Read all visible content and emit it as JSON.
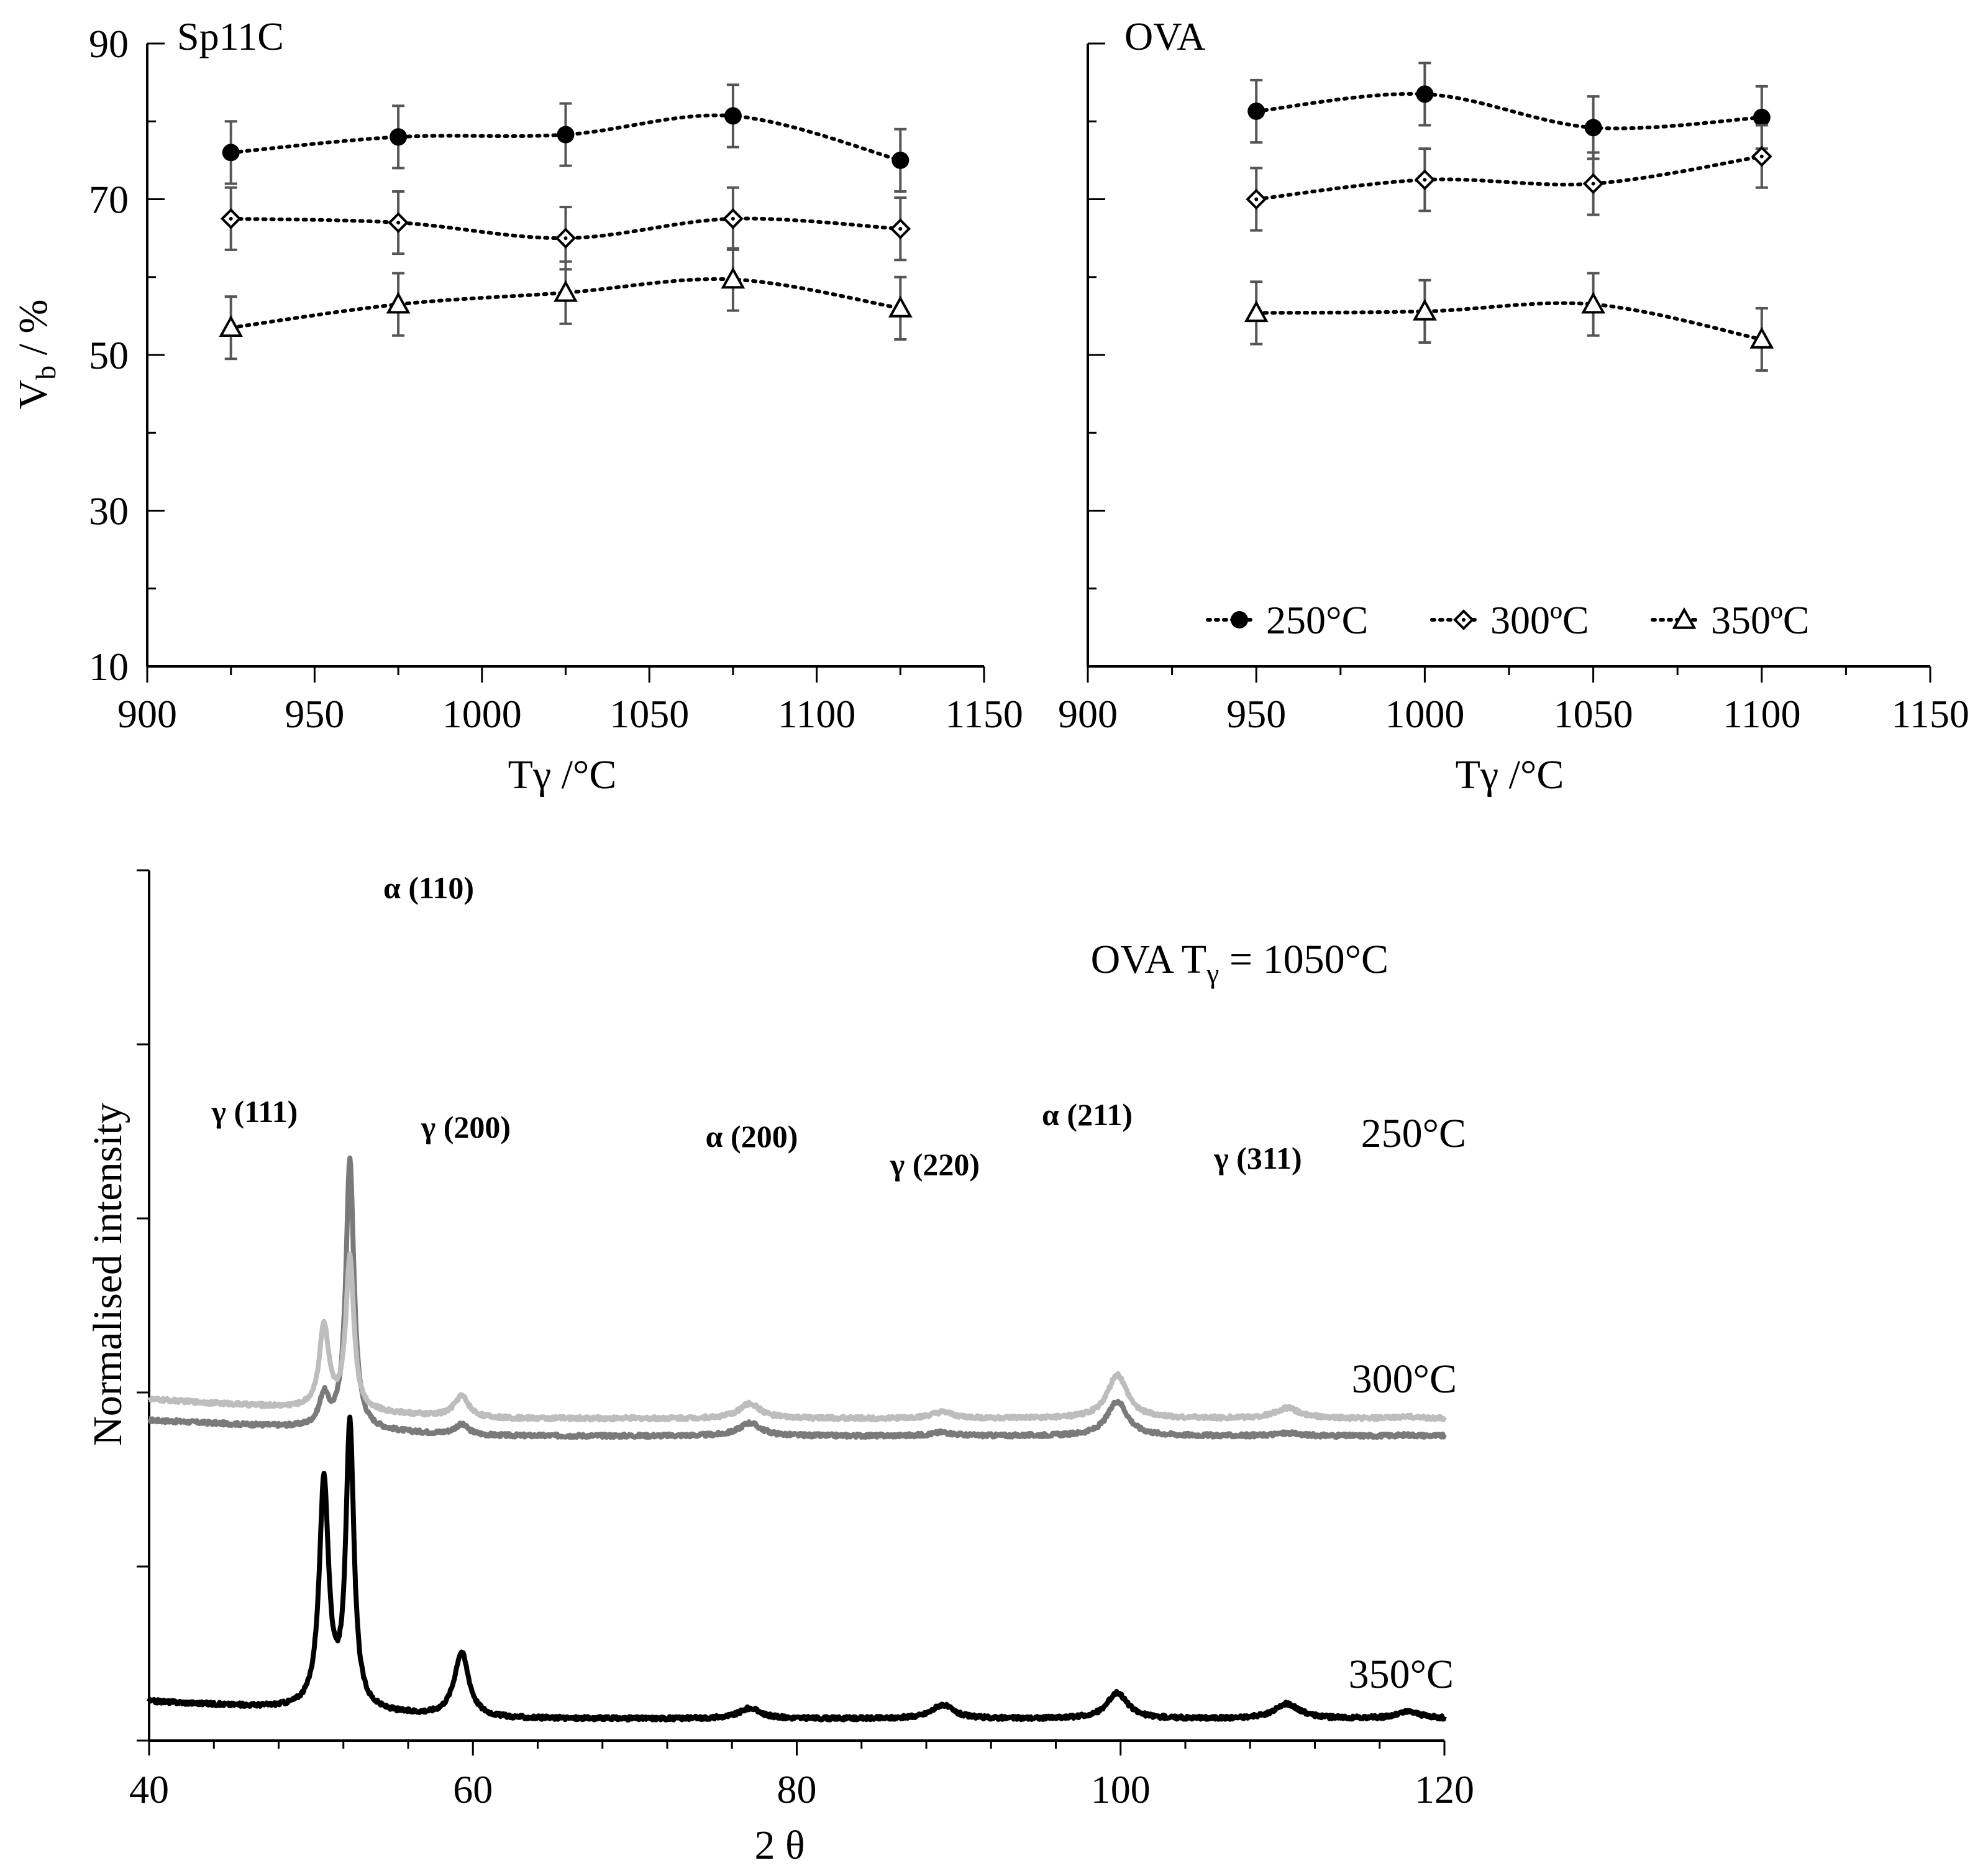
{
  "chart_data": [
    {
      "type": "line",
      "title": "Sp11C",
      "xlabel": "Tγ /°C",
      "ylabel": "V",
      "ylabel_sub": "b",
      "ylabel_unit": " / %",
      "xlim": [
        900,
        1150
      ],
      "ylim": [
        10,
        90
      ],
      "xticks": [
        "900",
        "950",
        "1000",
        "1050",
        "1100",
        "1150"
      ],
      "yticks": [
        "10",
        "30",
        "50",
        "70",
        "90"
      ],
      "x": [
        925,
        975,
        1025,
        1075,
        1125
      ],
      "series": [
        {
          "name": "250°C",
          "marker": "circle",
          "values": [
            76,
            78,
            78.3,
            80.7,
            75
          ],
          "errors": [
            4,
            4,
            4,
            4,
            4
          ]
        },
        {
          "name": "300ºC",
          "marker": "diamond",
          "values": [
            67.5,
            67,
            65,
            67.5,
            66.2
          ],
          "errors": [
            4,
            4,
            4,
            4,
            4
          ]
        },
        {
          "name": "350ºC",
          "marker": "triangle",
          "values": [
            53.5,
            56.5,
            58,
            59.7,
            56
          ],
          "errors": [
            4,
            4,
            4,
            4,
            4
          ]
        }
      ]
    },
    {
      "type": "line",
      "title": "OVA",
      "xlabel": "Tγ /°C",
      "xlim": [
        900,
        1150
      ],
      "ylim": [
        10,
        90
      ],
      "xticks": [
        "900",
        "950",
        "1000",
        "1050",
        "1100",
        "1150"
      ],
      "x": [
        950,
        1000,
        1050,
        1100
      ],
      "legend": [
        "250°C",
        "300ºC",
        "350ºC"
      ],
      "series": [
        {
          "name": "250°C",
          "marker": "circle",
          "values": [
            81.3,
            83.5,
            79.2,
            80.5
          ],
          "errors": [
            4,
            4,
            4,
            4
          ]
        },
        {
          "name": "300ºC",
          "marker": "diamond",
          "values": [
            70,
            72.5,
            72,
            75.5
          ],
          "errors": [
            4,
            4,
            4,
            4
          ]
        },
        {
          "name": "350ºC",
          "marker": "triangle",
          "values": [
            55.4,
            55.6,
            56.5,
            52
          ],
          "errors": [
            4,
            4,
            4,
            4
          ]
        }
      ]
    },
    {
      "type": "line",
      "title": "OVA T",
      "title_sub": "γ",
      "title_suffix": " = 1050°C",
      "xlabel": "2 θ",
      "ylabel": "Normalised intensity",
      "xlim": [
        40,
        120
      ],
      "xticks": [
        "40",
        "60",
        "80",
        "100",
        "120"
      ],
      "series": [
        {
          "name": "250°C",
          "color": "#7a7a7a",
          "baseline": 0.35,
          "slope": 0.018
        },
        {
          "name": "300°C",
          "color": "#bdbdbd",
          "baseline": 0.37,
          "slope": 0.022
        },
        {
          "name": "350°C",
          "color": "#000000",
          "baseline": 0.025,
          "slope": 0.02
        }
      ],
      "peaks": [
        {
          "label": "γ  (111)",
          "two_theta": 50.8,
          "heights": [
            0.035,
            0.095,
            0.26
          ]
        },
        {
          "label": "α  (110)",
          "two_theta": 52.4,
          "heights": [
            0.31,
            0.175,
            0.325
          ]
        },
        {
          "label": "γ  (200)",
          "two_theta": 59.3,
          "heights": [
            0.012,
            0.025,
            0.075
          ]
        },
        {
          "label": "α  (200)",
          "two_theta": 77.1,
          "heights": [
            0.015,
            0.017,
            0.012
          ]
        },
        {
          "label": "γ  (220)",
          "two_theta": 89.0,
          "heights": [
            0.004,
            0.007,
            0.016
          ]
        },
        {
          "label": "α  (211)",
          "two_theta": 99.8,
          "heights": [
            0.04,
            0.05,
            0.03
          ]
        },
        {
          "label": "γ  (311)",
          "two_theta": 110.3,
          "heights": [
            0.003,
            0.012,
            0.017
          ]
        },
        {
          "label": "",
          "two_theta": 117.8,
          "heights": [
            0.001,
            0.002,
            0.008
          ]
        }
      ]
    }
  ]
}
